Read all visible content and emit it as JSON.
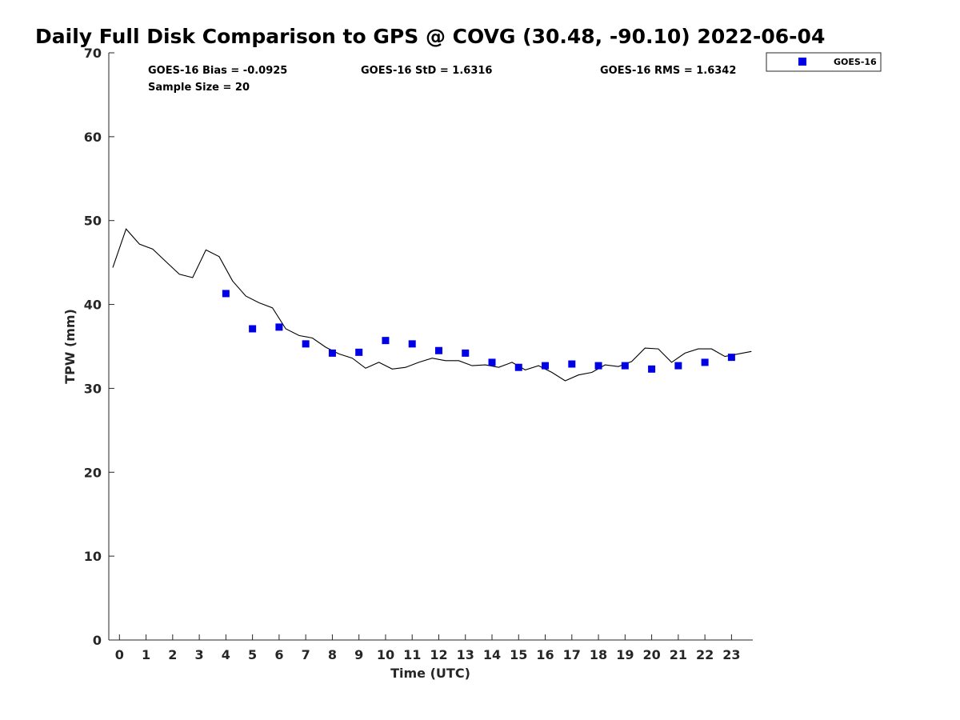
{
  "chart_data": {
    "type": "scatter",
    "title": "Daily Full Disk Comparison to GPS @ COVG (30.48, -90.10) 2022-06-04",
    "xlabel": "Time (UTC)",
    "ylabel": "TPW (mm)",
    "xlim": [
      -0.4,
      23.8
    ],
    "ylim": [
      0,
      70
    ],
    "x_ticks": [
      0,
      1,
      2,
      3,
      4,
      5,
      6,
      7,
      8,
      9,
      10,
      11,
      12,
      13,
      14,
      15,
      16,
      17,
      18,
      19,
      20,
      21,
      22,
      23
    ],
    "y_ticks": [
      0,
      10,
      20,
      30,
      40,
      50,
      60,
      70
    ],
    "grid": false,
    "legend_position": "outside-top-right",
    "stats": {
      "bias": "GOES-16 Bias = -0.0925",
      "std": "GOES-16 StD = 1.6316",
      "rms": "GOES-16 RMS = 1.6342",
      "sample": "Sample Size = 20"
    },
    "series": [
      {
        "name": "GOES-16",
        "kind": "scatter",
        "marker": "square",
        "color": "#0000e6",
        "x": [
          4,
          5,
          6,
          7,
          8,
          9,
          10,
          11,
          12,
          13,
          14,
          15,
          16,
          17,
          18,
          19,
          20,
          21,
          22,
          23
        ],
        "y": [
          41.3,
          37.1,
          37.3,
          35.3,
          34.2,
          34.3,
          35.7,
          35.3,
          34.5,
          34.2,
          33.1,
          32.5,
          32.7,
          32.9,
          32.7,
          32.7,
          32.3,
          32.7,
          33.1,
          33.7
        ]
      },
      {
        "kind": "line",
        "color": "#000000",
        "x": [
          -0.25,
          0.25,
          0.75,
          1.25,
          1.75,
          2.25,
          2.75,
          3.25,
          3.75,
          4.25,
          4.75,
          5.25,
          5.75,
          6.25,
          6.75,
          7.25,
          7.75,
          8.25,
          8.75,
          9.25,
          9.75,
          10.25,
          10.75,
          11.25,
          11.75,
          12.25,
          12.75,
          13.25,
          13.75,
          14.25,
          14.75,
          15.25,
          15.75,
          16.25,
          16.75,
          17.25,
          17.75,
          18.25,
          18.75,
          19.25,
          19.75,
          20.25,
          20.75,
          21.25,
          21.75,
          22.25,
          22.75,
          23.25,
          23.75
        ],
        "y": [
          44.4,
          49.0,
          47.2,
          46.6,
          45.1,
          43.6,
          43.2,
          46.5,
          45.7,
          42.8,
          41.0,
          40.2,
          39.6,
          37.1,
          36.3,
          36.0,
          34.9,
          34.1,
          33.6,
          32.4,
          33.1,
          32.3,
          32.5,
          33.1,
          33.6,
          33.3,
          33.3,
          32.7,
          32.8,
          32.5,
          33.1,
          32.2,
          32.7,
          31.9,
          30.9,
          31.6,
          31.9,
          32.8,
          32.6,
          33.2,
          34.8,
          34.7,
          33.1,
          34.2,
          34.7,
          34.7,
          33.8,
          34.1,
          34.4
        ]
      }
    ]
  }
}
